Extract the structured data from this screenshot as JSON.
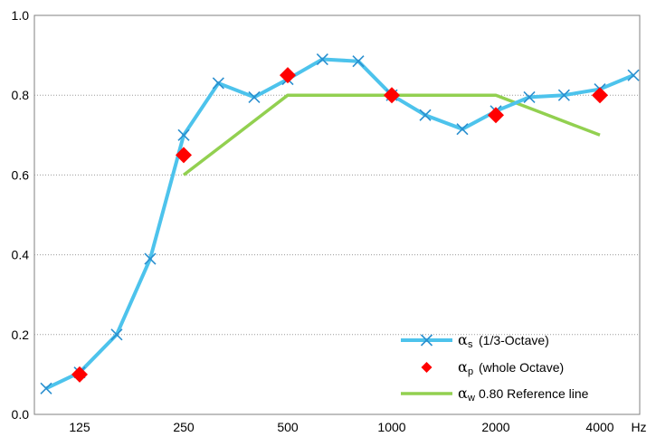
{
  "chart_data": {
    "type": "line",
    "x_unit_label": "Hz",
    "x_tick_labels": [
      "125",
      "250",
      "500",
      "1000",
      "2000",
      "4000"
    ],
    "y_tick_labels": [
      "0.0",
      "0.2",
      "0.4",
      "0.6",
      "0.8",
      "1.0"
    ],
    "ylim": [
      0,
      1
    ],
    "x_scale": "log (octave)",
    "grid": "horizontal dotted",
    "legend_placement": "bottom-right",
    "series": [
      {
        "name": "αs (1/3-Octave)",
        "alpha_symbol": "α",
        "subscript": "s",
        "label_rest": "(1/3-Octave)",
        "color": "#4DC3EC",
        "marker": "x",
        "x": [
          100,
          125,
          160,
          200,
          250,
          315,
          400,
          500,
          630,
          800,
          1000,
          1250,
          1600,
          2000,
          2500,
          3150,
          4000,
          5000
        ],
        "y": [
          0.065,
          0.105,
          0.2,
          0.39,
          0.7,
          0.83,
          0.795,
          0.84,
          0.89,
          0.885,
          0.8,
          0.75,
          0.715,
          0.76,
          0.795,
          0.8,
          0.815,
          0.85
        ]
      },
      {
        "name": "αp (whole Octave)",
        "alpha_symbol": "α",
        "subscript": "p",
        "label_rest": "(whole Octave)",
        "color": "#FF0000",
        "marker": "diamond",
        "x": [
          125,
          250,
          500,
          1000,
          2000,
          4000
        ],
        "y": [
          0.1,
          0.65,
          0.85,
          0.8,
          0.75,
          0.8
        ]
      },
      {
        "name": "αw 0.80 Reference line",
        "alpha_symbol": "α",
        "subscript": "w",
        "label_rest": "0.80 Reference line",
        "color": "#92D050",
        "marker": "none",
        "x": [
          250,
          500,
          1000,
          2000,
          4000
        ],
        "y": [
          0.6,
          0.8,
          0.8,
          0.8,
          0.7
        ]
      }
    ]
  }
}
